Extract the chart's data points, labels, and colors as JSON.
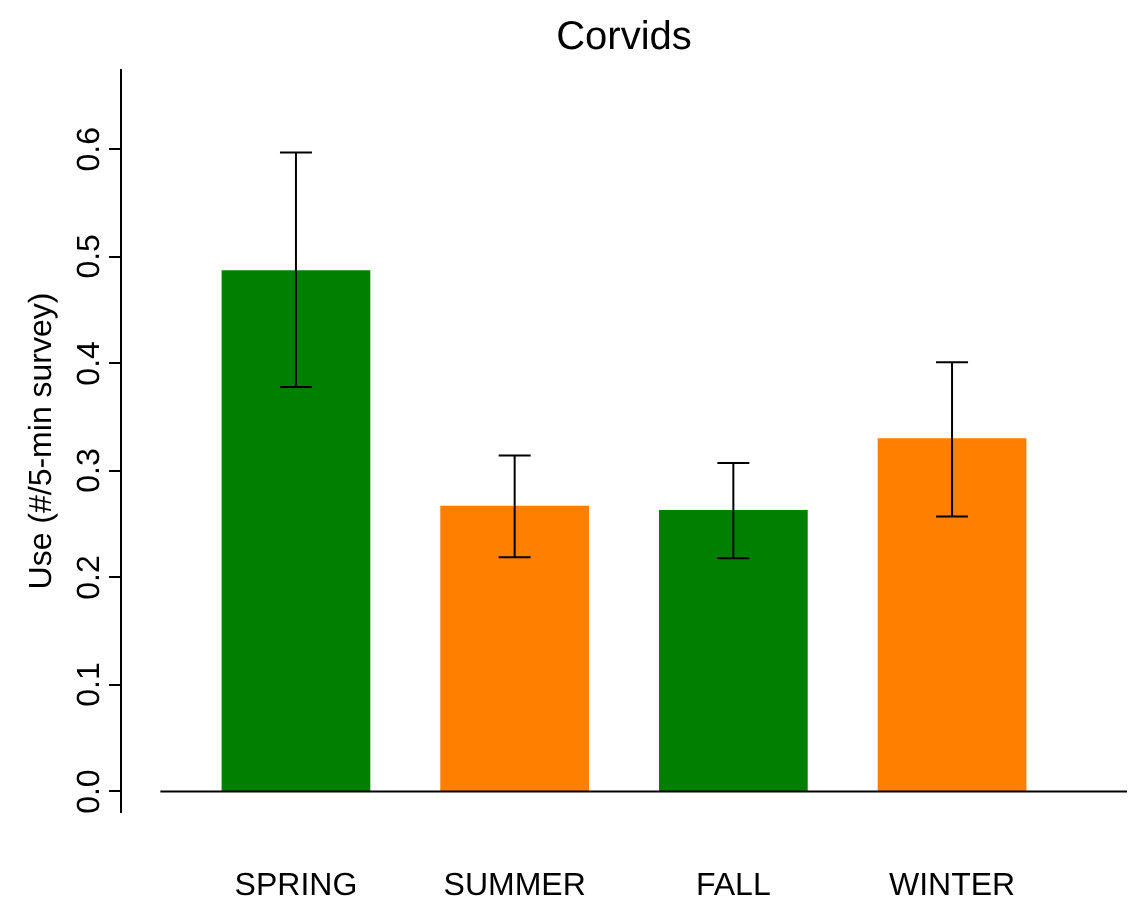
{
  "chart_data": {
    "type": "bar",
    "title": "Corvids",
    "ylabel": "Use (#/5-min survey)",
    "categories": [
      "SPRING",
      "SUMMER",
      "FALL",
      "WINTER"
    ],
    "values": [
      0.487,
      0.267,
      0.263,
      0.33
    ],
    "colors": [
      "#007f00",
      "#ff7f00",
      "#007f00",
      "#ff7f00"
    ],
    "errors": [
      [
        0.378,
        0.597
      ],
      [
        0.219,
        0.314
      ],
      [
        0.218,
        0.307
      ],
      [
        0.257,
        0.401
      ]
    ],
    "ylim": [
      -0.02,
      0.675
    ],
    "yticks": [
      {
        "value": 0,
        "label": "0.0"
      },
      0.1,
      0.2,
      0.3,
      0.4,
      0.5,
      0.6
    ],
    "grid": false
  }
}
